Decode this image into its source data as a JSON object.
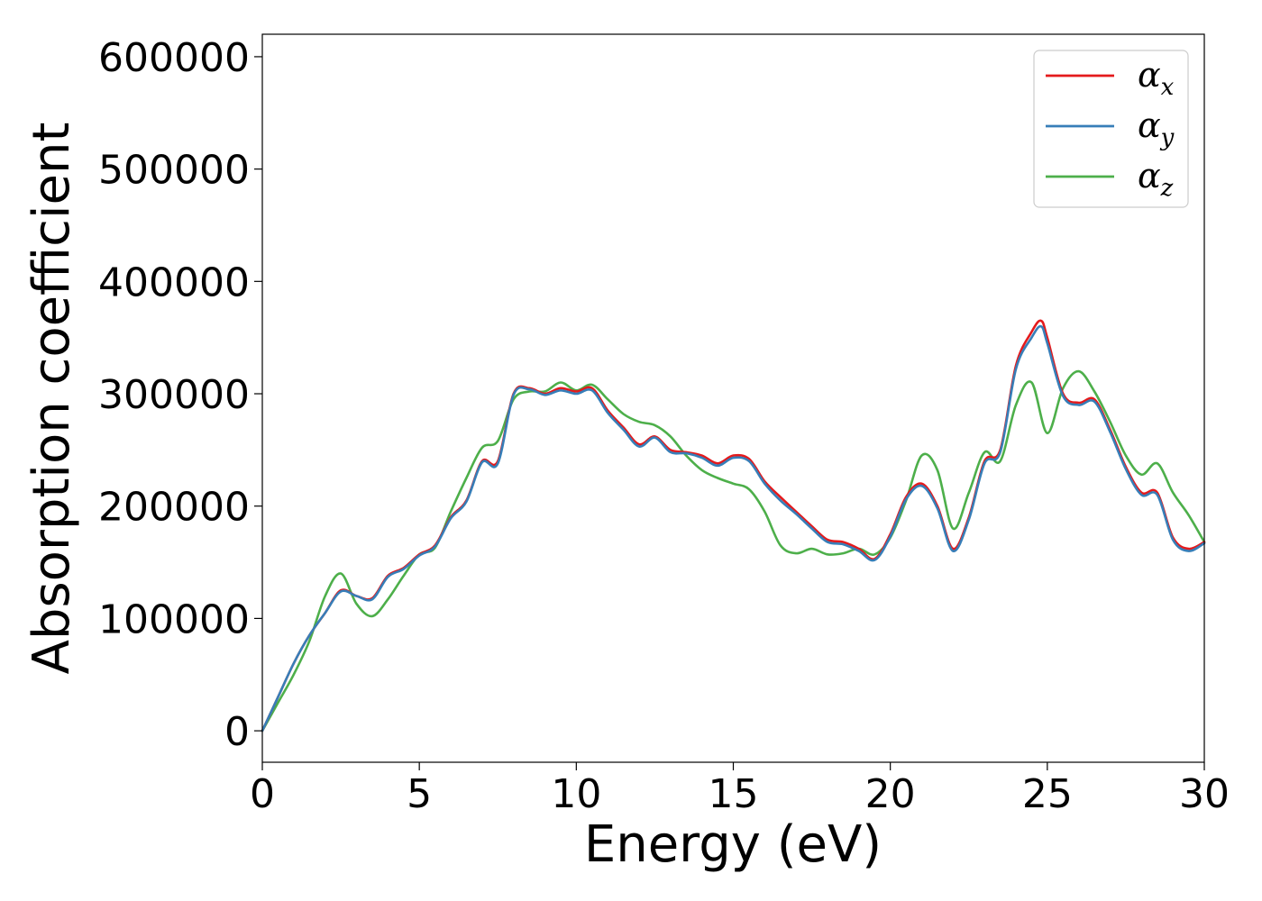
{
  "chart_data": {
    "type": "line",
    "xlabel": "Energy (eV)",
    "ylabel": "Absorption coefficient",
    "xlim": [
      0,
      30
    ],
    "ylim": [
      -28000,
      620000
    ],
    "xticks": [
      "0",
      "5",
      "10",
      "15",
      "20",
      "25",
      "30"
    ],
    "yticks": [
      "0",
      "100000",
      "200000",
      "300000",
      "400000",
      "500000",
      "600000"
    ],
    "grid": false,
    "legend_position": "top-right",
    "series": [
      {
        "name": "αx",
        "legend_base": "α",
        "legend_sub": "x",
        "color": "#e41a1c",
        "x": [
          0,
          0.5,
          1,
          1.5,
          2,
          2.5,
          3,
          3.5,
          4,
          4.5,
          5,
          5.5,
          6,
          6.5,
          7,
          7.5,
          8,
          8.5,
          9,
          9.5,
          10,
          10.5,
          11,
          11.5,
          12,
          12.5,
          13,
          13.5,
          14,
          14.5,
          15,
          15.5,
          16,
          16.5,
          17,
          17.5,
          18,
          18.5,
          19,
          19.5,
          20,
          20.5,
          21,
          21.5,
          22,
          22.5,
          23,
          23.5,
          24,
          24.5,
          24.8,
          25,
          25.5,
          26,
          26.5,
          27,
          27.5,
          28,
          28.5,
          29,
          29.5,
          30
        ],
        "y": [
          0,
          30000,
          60000,
          85000,
          105000,
          125000,
          120000,
          118000,
          138000,
          145000,
          157000,
          165000,
          190000,
          205000,
          240000,
          240000,
          300000,
          305000,
          300000,
          305000,
          302000,
          305000,
          285000,
          270000,
          255000,
          262000,
          250000,
          248000,
          245000,
          238000,
          245000,
          242000,
          222000,
          208000,
          195000,
          182000,
          170000,
          168000,
          162000,
          153000,
          175000,
          208000,
          220000,
          200000,
          162000,
          190000,
          240000,
          250000,
          325000,
          355000,
          365000,
          350000,
          300000,
          292000,
          295000,
          268000,
          235000,
          212000,
          212000,
          172000,
          162000,
          168000
        ]
      },
      {
        "name": "αy",
        "legend_base": "α",
        "legend_sub": "y",
        "color": "#377eb8",
        "x": [
          0,
          0.5,
          1,
          1.5,
          2,
          2.5,
          3,
          3.5,
          4,
          4.5,
          5,
          5.5,
          6,
          6.5,
          7,
          7.5,
          8,
          8.5,
          9,
          9.5,
          10,
          10.5,
          11,
          11.5,
          12,
          12.5,
          13,
          13.5,
          14,
          14.5,
          15,
          15.5,
          16,
          16.5,
          17,
          17.5,
          18,
          18.5,
          19,
          19.5,
          20,
          20.5,
          21,
          21.5,
          22,
          22.5,
          23,
          23.5,
          24,
          24.5,
          24.8,
          25,
          25.5,
          26,
          26.5,
          27,
          27.5,
          28,
          28.5,
          29,
          29.5,
          30
        ],
        "y": [
          0,
          30000,
          60000,
          85000,
          105000,
          124000,
          120000,
          117000,
          137000,
          144000,
          156000,
          164000,
          189000,
          204000,
          239000,
          238000,
          299000,
          304000,
          299000,
          303000,
          300000,
          303000,
          283000,
          268000,
          253000,
          261000,
          248000,
          247000,
          243000,
          236000,
          243000,
          240000,
          220000,
          205000,
          193000,
          180000,
          168000,
          166000,
          160000,
          152000,
          173000,
          206000,
          218000,
          198000,
          160000,
          188000,
          238000,
          248000,
          322000,
          350000,
          360000,
          345000,
          298000,
          290000,
          293000,
          266000,
          233000,
          210000,
          210000,
          170000,
          160000,
          167000
        ]
      },
      {
        "name": "αz",
        "legend_base": "α",
        "legend_sub": "z",
        "color": "#4daf4a",
        "x": [
          0,
          0.5,
          1,
          1.5,
          2,
          2.5,
          3,
          3.5,
          4,
          4.5,
          5,
          5.5,
          6,
          6.5,
          7,
          7.5,
          8,
          8.5,
          9,
          9.5,
          10,
          10.5,
          11,
          11.5,
          12,
          12.5,
          13,
          13.5,
          14,
          14.5,
          15,
          15.5,
          16,
          16.5,
          17,
          17.5,
          18,
          18.5,
          19,
          19.5,
          20,
          20.5,
          21,
          21.5,
          22,
          22.5,
          23,
          23.5,
          24,
          24.5,
          25,
          25.5,
          26,
          26.5,
          27,
          27.5,
          28,
          28.5,
          29,
          29.5,
          30
        ],
        "y": [
          0,
          25000,
          50000,
          80000,
          120000,
          140000,
          113000,
          102000,
          117000,
          138000,
          157000,
          163000,
          195000,
          225000,
          252000,
          258000,
          295000,
          302000,
          302000,
          310000,
          303000,
          308000,
          295000,
          282000,
          275000,
          272000,
          262000,
          245000,
          232000,
          225000,
          220000,
          215000,
          195000,
          165000,
          158000,
          162000,
          157000,
          158000,
          162000,
          157000,
          172000,
          205000,
          245000,
          232000,
          180000,
          212000,
          248000,
          240000,
          290000,
          310000,
          265000,
          305000,
          320000,
          302000,
          275000,
          245000,
          228000,
          238000,
          212000,
          192000,
          168000
        ]
      }
    ]
  }
}
